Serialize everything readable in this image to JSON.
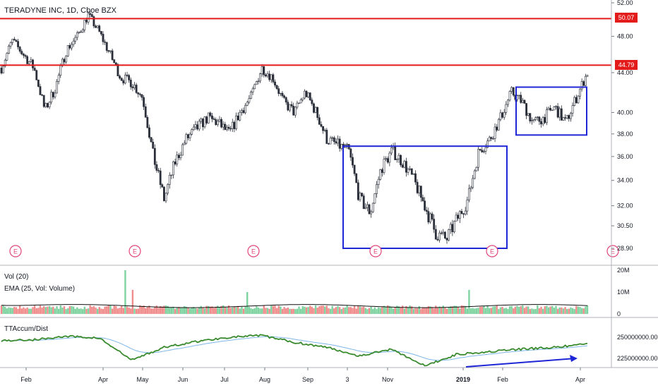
{
  "header": {
    "title": "TERADYNE INC, 1D, Cboe BZX"
  },
  "panes": {
    "volume_label": "Vol (20)",
    "ema_label": "EMA (25, Vol: Volume)",
    "accum_label": "TTAccum/Dist"
  },
  "price_tags": {
    "upper": "50.07",
    "lower": "44.79"
  },
  "earnings_marker_label": "E",
  "colors": {
    "up": "#26a69a",
    "down": "#ef5350",
    "resistance": "#e31b1b",
    "box": "#1f26d6",
    "accum_line": "#3a8a2e",
    "accum_ma": "#7fb6e8",
    "earnings": "#e0457b"
  },
  "chart_data": [
    {
      "type": "candlestick",
      "title": "TERADYNE INC, 1D, Cboe BZX",
      "x_ticks": [
        "Feb",
        "Apr",
        "May",
        "Jun",
        "Jul",
        "Aug",
        "Sep",
        "3",
        "Nov",
        "2019",
        "Feb",
        "Apr"
      ],
      "y_ticks": [
        "52.00",
        "48.00",
        "44.00",
        "40.00",
        "38.00",
        "36.00",
        "34.00",
        "32.00",
        "30.50",
        "28.90"
      ],
      "ylim": [
        28.0,
        52.5
      ],
      "y_scale": "log",
      "resistance_lines": [
        50.07,
        44.79
      ],
      "boxes": [
        {
          "x_start": "Sep",
          "x_end": "2019",
          "y_low": 28.9,
          "y_high": 36.9
        },
        {
          "x_start": "Feb",
          "x_end": "Apr",
          "y_low": 37.9,
          "y_high": 42.5
        }
      ],
      "close_path": [
        [
          "Jan",
          44.5
        ],
        [
          "Jan",
          47.5
        ],
        [
          "Jan",
          46.0
        ],
        [
          "Feb",
          44.5
        ],
        [
          "Feb",
          40.2
        ],
        [
          "Feb",
          42.5
        ],
        [
          "Feb",
          46.5
        ],
        [
          "Mar",
          48.0
        ],
        [
          "Mar",
          50.5
        ],
        [
          "Mar",
          48.5
        ],
        [
          "Apr",
          46.0
        ],
        [
          "Apr",
          43.5
        ],
        [
          "Apr",
          43.0
        ],
        [
          "Apr",
          41.5
        ],
        [
          "May",
          36.0
        ],
        [
          "May",
          32.5
        ],
        [
          "May",
          35.5
        ],
        [
          "May",
          37.5
        ],
        [
          "Jun",
          38.5
        ],
        [
          "Jun",
          39.5
        ],
        [
          "Jun",
          39.0
        ],
        [
          "Jul",
          38.0
        ],
        [
          "Jul",
          40.0
        ],
        [
          "Jul",
          41.5
        ],
        [
          "Aug",
          44.5
        ],
        [
          "Aug",
          43.5
        ],
        [
          "Aug",
          41.0
        ],
        [
          "Aug",
          40.0
        ],
        [
          "Sep",
          42.0
        ],
        [
          "Sep",
          40.0
        ],
        [
          "Sep",
          37.5
        ],
        [
          "3",
          37.0
        ],
        [
          "3",
          36.5
        ],
        [
          "3",
          32.5
        ],
        [
          "Nov",
          31.5
        ],
        [
          "Nov",
          35.0
        ],
        [
          "Nov",
          36.5
        ],
        [
          "Nov",
          35.5
        ],
        [
          "Nov",
          34.0
        ],
        [
          "Nov",
          32.0
        ],
        [
          "Nov",
          30.0
        ],
        [
          "2019",
          29.5
        ],
        [
          "2019",
          31.0
        ],
        [
          "2019",
          32.5
        ],
        [
          "2019",
          36.5
        ],
        [
          "Feb",
          37.5
        ],
        [
          "Feb",
          39.5
        ],
        [
          "Feb",
          42.0
        ],
        [
          "Feb",
          41.0
        ],
        [
          "Apr",
          39.0
        ],
        [
          "Apr",
          39.5
        ],
        [
          "Apr",
          40.5
        ],
        [
          "Apr",
          39.0
        ],
        [
          "Apr",
          41.5
        ],
        [
          "Apr",
          44.0
        ]
      ]
    },
    {
      "type": "bar",
      "title": "Vol (20)",
      "subtitle": "EMA (25, Vol: Volume)",
      "y_ticks": [
        "20M",
        "10M",
        "0"
      ],
      "ylim": [
        0,
        20
      ],
      "unit": "M",
      "spikes": [
        {
          "near": "May",
          "value": 20
        },
        {
          "near": "May",
          "value": 11
        },
        {
          "near": "Aug",
          "value": 10
        },
        {
          "near": "2019",
          "value": 11
        }
      ]
    },
    {
      "type": "line",
      "title": "TTAccum/Dist",
      "y_ticks": [
        "250000000.00",
        "225000000.00"
      ],
      "ylim": [
        210000000,
        265000000
      ],
      "path": [
        [
          "Jan",
          246000000
        ],
        [
          "Feb",
          247000000
        ],
        [
          "Mar",
          251000000
        ],
        [
          "Apr",
          249000000
        ],
        [
          "May",
          223000000
        ],
        [
          "May",
          238000000
        ],
        [
          "Jun",
          245000000
        ],
        [
          "Jul",
          250000000
        ],
        [
          "Aug",
          252000000
        ],
        [
          "Sep",
          244000000
        ],
        [
          "3",
          238000000
        ],
        [
          "Nov",
          228000000
        ],
        [
          "Nov",
          236000000
        ],
        [
          "2019",
          216000000
        ],
        [
          "2019",
          230000000
        ],
        [
          "Feb",
          233000000
        ],
        [
          "Feb",
          236000000
        ],
        [
          "Apr",
          238000000
        ],
        [
          "Apr",
          242000000
        ]
      ]
    }
  ]
}
